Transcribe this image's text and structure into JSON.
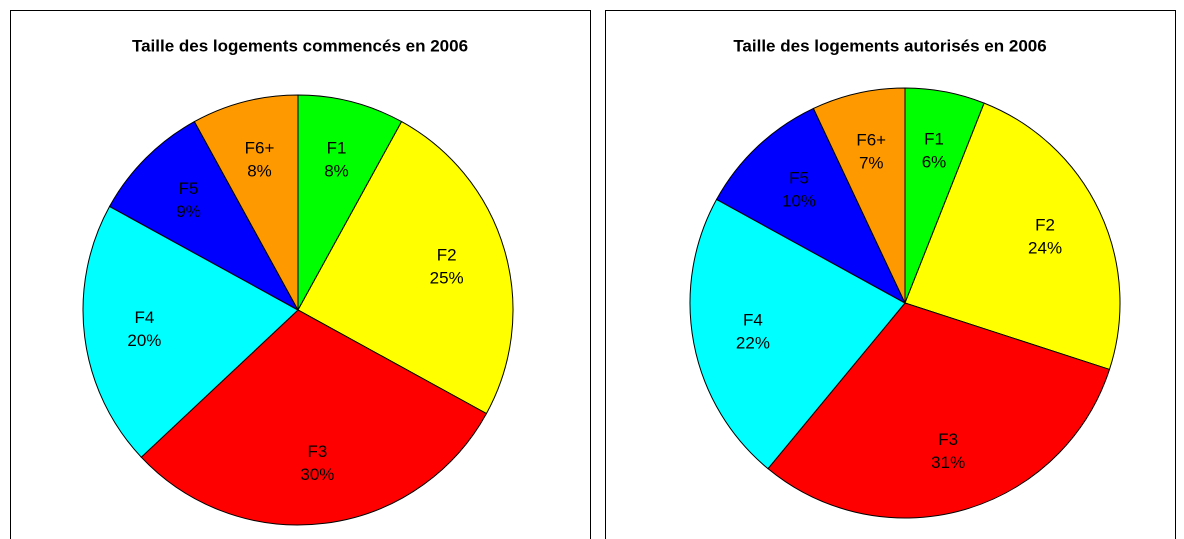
{
  "chart_data": [
    {
      "type": "pie",
      "title": "Taille des logements commencés en 2006",
      "categories": [
        "F1",
        "F2",
        "F3",
        "F4",
        "F5",
        "F6+"
      ],
      "values": [
        8,
        25,
        30,
        20,
        9,
        8
      ],
      "value_labels": [
        "8%",
        "25%",
        "30%",
        "20%",
        "9%",
        "8%"
      ],
      "colors": [
        "#00ff00",
        "#ffff00",
        "#ff0000",
        "#00ffff",
        "#0000ff",
        "#ff9900"
      ]
    },
    {
      "type": "pie",
      "title": "Taille des logements autorisés en 2006",
      "categories": [
        "F1",
        "F2",
        "F3",
        "F4",
        "F5",
        "F6+"
      ],
      "values": [
        6,
        24,
        31,
        22,
        10,
        7
      ],
      "value_labels": [
        "6%",
        "24%",
        "31%",
        "22%",
        "10%",
        "7%"
      ],
      "colors": [
        "#00ff00",
        "#ffff00",
        "#ff0000",
        "#00ffff",
        "#0000ff",
        "#ff9900"
      ]
    }
  ]
}
